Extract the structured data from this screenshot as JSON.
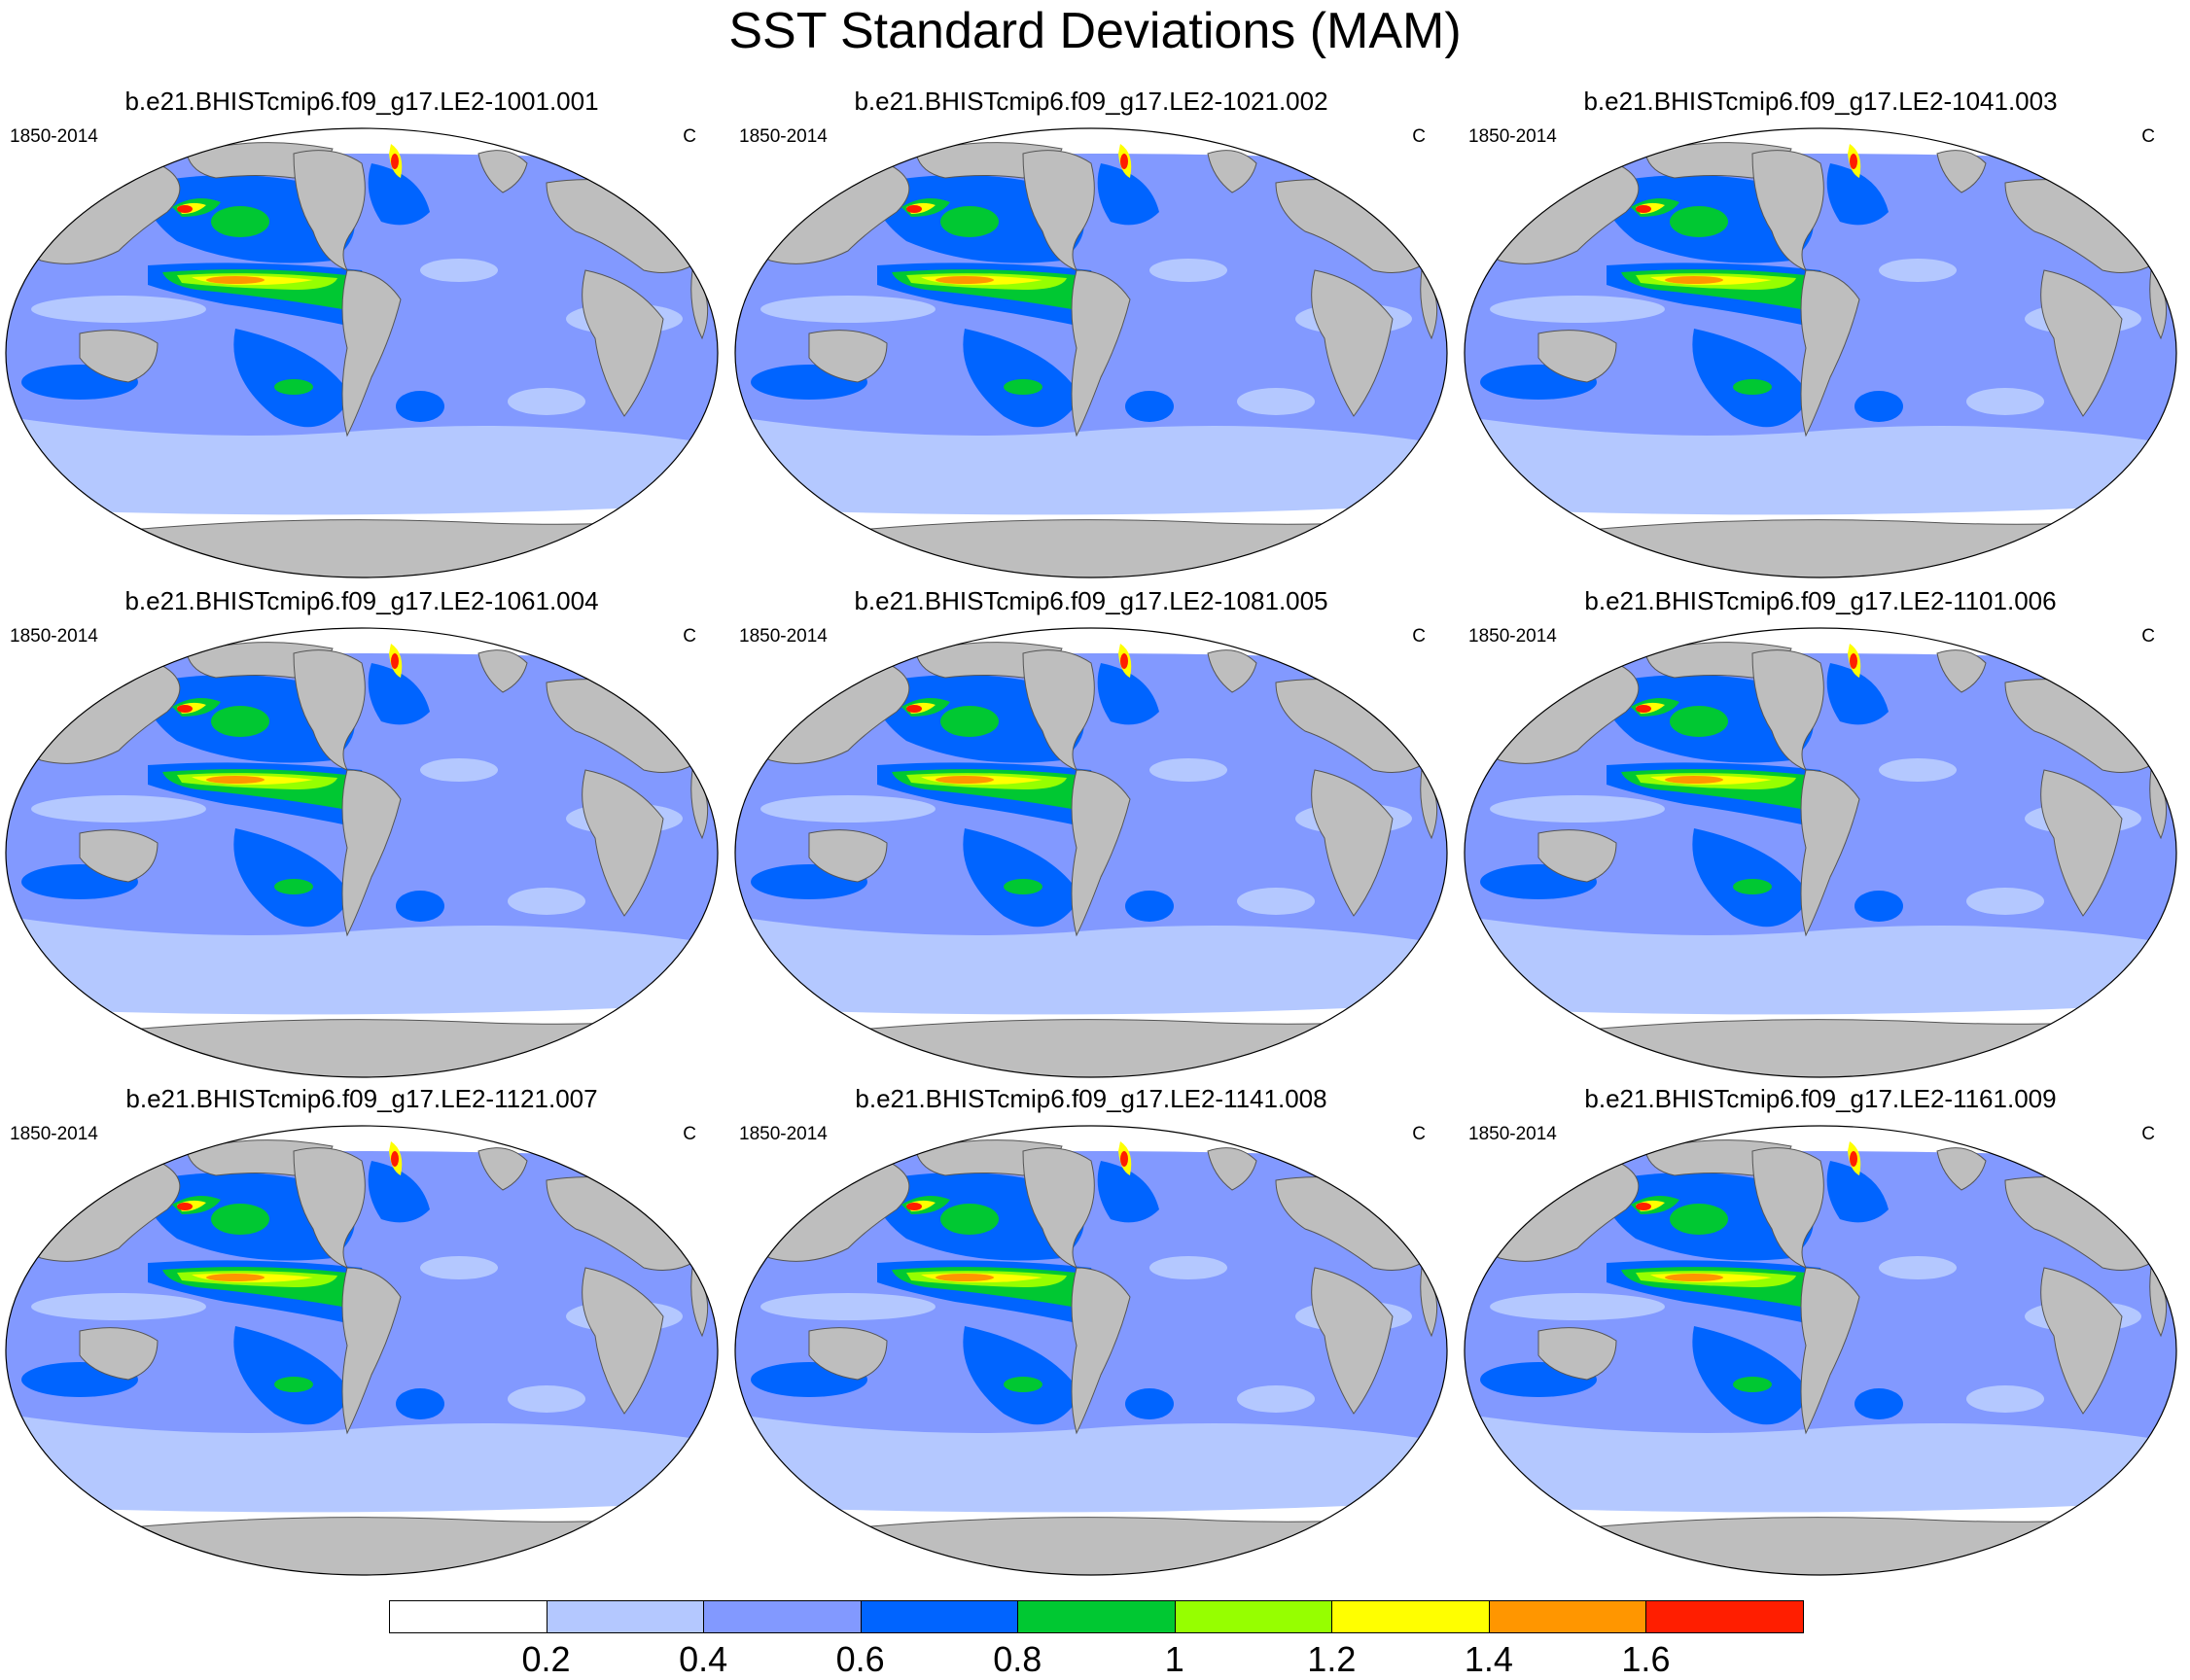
{
  "title": "SST Standard Deviations (MAM)",
  "panels": [
    {
      "title": "b.e21.BHISTcmip6.f09_g17.LE2-1001.001",
      "left_label": "1850-2014",
      "right_label": "C"
    },
    {
      "title": "b.e21.BHISTcmip6.f09_g17.LE2-1021.002",
      "left_label": "1850-2014",
      "right_label": "C"
    },
    {
      "title": "b.e21.BHISTcmip6.f09_g17.LE2-1041.003",
      "left_label": "1850-2014",
      "right_label": "C"
    },
    {
      "title": "b.e21.BHISTcmip6.f09_g17.LE2-1061.004",
      "left_label": "1850-2014",
      "right_label": "C"
    },
    {
      "title": "b.e21.BHISTcmip6.f09_g17.LE2-1081.005",
      "left_label": "1850-2014",
      "right_label": "C"
    },
    {
      "title": "b.e21.BHISTcmip6.f09_g17.LE2-1101.006",
      "left_label": "1850-2014",
      "right_label": "C"
    },
    {
      "title": "b.e21.BHISTcmip6.f09_g17.LE2-1121.007",
      "left_label": "1850-2014",
      "right_label": "C"
    },
    {
      "title": "b.e21.BHISTcmip6.f09_g17.LE2-1141.008",
      "left_label": "1850-2014",
      "right_label": "C"
    },
    {
      "title": "b.e21.BHISTcmip6.f09_g17.LE2-1161.009",
      "left_label": "1850-2014",
      "right_label": "C"
    }
  ],
  "colorbar": {
    "colors": [
      "#ffffff",
      "#b4c8ff",
      "#8299ff",
      "#0064ff",
      "#00c832",
      "#96ff00",
      "#ffff00",
      "#ff9600",
      "#ff1e00"
    ],
    "labels": [
      "0.2",
      "0.4",
      "0.6",
      "0.8",
      "1",
      "1.2",
      "1.4",
      "1.6"
    ]
  },
  "land_color": "#bebebe"
}
